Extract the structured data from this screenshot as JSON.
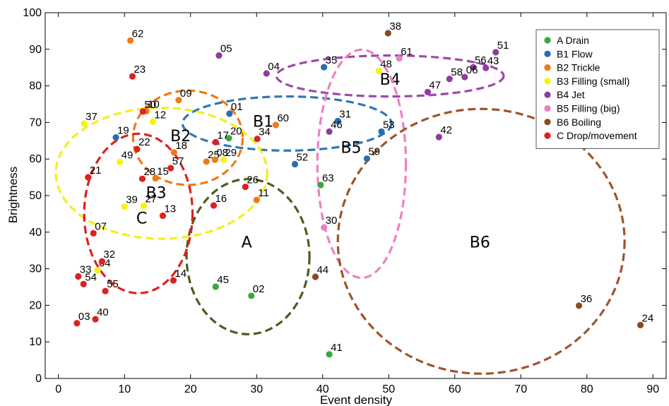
{
  "chart_data": {
    "type": "scatter",
    "xlabel": "Event density",
    "ylabel": "Brightness",
    "xlim": [
      -2,
      92
    ],
    "ylim": [
      0,
      100
    ],
    "xticks": [
      0,
      10,
      20,
      30,
      40,
      50,
      60,
      70,
      80,
      90
    ],
    "yticks": [
      0,
      10,
      20,
      30,
      40,
      50,
      60,
      70,
      80,
      90,
      100
    ],
    "grid": false,
    "legend_position": "top-right",
    "series": [
      {
        "name": "A  Drain",
        "color": "#3aa83a",
        "points": [
          {
            "id": "63",
            "x": 39.7,
            "y": 52.9
          },
          {
            "id": "45",
            "x": 23.8,
            "y": 25.1
          },
          {
            "id": "02",
            "x": 29.2,
            "y": 22.6
          },
          {
            "id": "41",
            "x": 41.0,
            "y": 6.6
          },
          {
            "id": "20",
            "x": 25.8,
            "y": 65.7
          }
        ]
      },
      {
        "name": "B1 Flow",
        "color": "#2b6cb0",
        "points": [
          {
            "id": "35",
            "x": 40.2,
            "y": 85.1
          },
          {
            "id": "01",
            "x": 25.9,
            "y": 72.4
          },
          {
            "id": "31",
            "x": 42.3,
            "y": 70.4
          },
          {
            "id": "53",
            "x": 48.9,
            "y": 67.5
          },
          {
            "id": "19",
            "x": 8.7,
            "y": 65.9
          },
          {
            "id": "52",
            "x": 35.8,
            "y": 58.6
          },
          {
            "id": "59",
            "x": 46.7,
            "y": 60.1
          }
        ]
      },
      {
        "name": "B2 Trickle",
        "color": "#f07a16",
        "points": [
          {
            "id": "62",
            "x": 10.9,
            "y": 92.4
          },
          {
            "id": "09",
            "x": 18.2,
            "y": 76.1
          },
          {
            "id": "10",
            "x": 13.3,
            "y": 73.1
          },
          {
            "id": "60",
            "x": 32.9,
            "y": 69.3
          },
          {
            "id": "18",
            "x": 17.5,
            "y": 61.8
          },
          {
            "id": "25",
            "x": 22.4,
            "y": 59.3
          },
          {
            "id": "08",
            "x": 23.7,
            "y": 59.8
          },
          {
            "id": "15",
            "x": 14.7,
            "y": 54.7
          },
          {
            "id": "11",
            "x": 30.0,
            "y": 48.8
          }
        ]
      },
      {
        "name": "B3 Filling (small)",
        "color": "#f5f50a",
        "points": [
          {
            "id": "37",
            "x": 3.9,
            "y": 69.7
          },
          {
            "id": "12",
            "x": 14.3,
            "y": 70.2
          },
          {
            "id": "49",
            "x": 9.3,
            "y": 59.2
          },
          {
            "id": "39",
            "x": 10.0,
            "y": 47.0
          },
          {
            "id": "27",
            "x": 12.9,
            "y": 47.2
          },
          {
            "id": "64",
            "x": 5.9,
            "y": 29.6
          },
          {
            "id": "29",
            "x": 25.0,
            "y": 59.8
          },
          {
            "id": "48",
            "x": 48.5,
            "y": 84.1
          }
        ]
      },
      {
        "name": "B4 Jet",
        "color": "#8e3d9e",
        "points": [
          {
            "id": "05",
            "x": 24.3,
            "y": 88.3
          },
          {
            "id": "04",
            "x": 31.5,
            "y": 83.4
          },
          {
            "id": "51",
            "x": 66.2,
            "y": 89.2
          },
          {
            "id": "56",
            "x": 62.8,
            "y": 85.1
          },
          {
            "id": "43",
            "x": 64.7,
            "y": 84.9
          },
          {
            "id": "06",
            "x": 61.5,
            "y": 82.4
          },
          {
            "id": "58",
            "x": 59.2,
            "y": 81.9
          },
          {
            "id": "47",
            "x": 55.9,
            "y": 78.3
          },
          {
            "id": "46",
            "x": 41.0,
            "y": 67.5
          },
          {
            "id": "42",
            "x": 57.6,
            "y": 66.0
          }
        ]
      },
      {
        "name": "B5 Filling (big)",
        "color": "#ee7fc3",
        "points": [
          {
            "id": "61",
            "x": 51.6,
            "y": 87.5
          },
          {
            "id": "30",
            "x": 40.2,
            "y": 41.3
          }
        ]
      },
      {
        "name": "B6 Boiling",
        "color": "#8b4a1e",
        "points": [
          {
            "id": "38",
            "x": 49.9,
            "y": 94.4
          },
          {
            "id": "44",
            "x": 38.9,
            "y": 27.8
          },
          {
            "id": "36",
            "x": 78.8,
            "y": 19.9
          },
          {
            "id": "24",
            "x": 88.1,
            "y": 14.6
          }
        ]
      },
      {
        "name": "C  Drop/movement",
        "color": "#dd2020",
        "points": [
          {
            "id": "23",
            "x": 11.2,
            "y": 82.6
          },
          {
            "id": "50",
            "x": 12.8,
            "y": 73.0
          },
          {
            "id": "22",
            "x": 11.9,
            "y": 62.7
          },
          {
            "id": "17",
            "x": 23.8,
            "y": 64.6
          },
          {
            "id": "34",
            "x": 30.1,
            "y": 65.5
          },
          {
            "id": "57",
            "x": 17.0,
            "y": 57.5
          },
          {
            "id": "21",
            "x": 4.5,
            "y": 55.0
          },
          {
            "id": "28",
            "x": 12.7,
            "y": 54.6
          },
          {
            "id": "26",
            "x": 28.3,
            "y": 52.4
          },
          {
            "id": "16",
            "x": 23.5,
            "y": 47.3
          },
          {
            "id": "13",
            "x": 15.8,
            "y": 44.5
          },
          {
            "id": "07",
            "x": 5.3,
            "y": 39.7
          },
          {
            "id": "32",
            "x": 6.6,
            "y": 32.0
          },
          {
            "id": "33",
            "x": 3.0,
            "y": 27.9
          },
          {
            "id": "54",
            "x": 3.8,
            "y": 25.8
          },
          {
            "id": "55",
            "x": 7.1,
            "y": 23.9
          },
          {
            "id": "14",
            "x": 17.4,
            "y": 26.8
          },
          {
            "id": "03",
            "x": 2.8,
            "y": 15.1
          },
          {
            "id": "40",
            "x": 5.6,
            "y": 16.2
          }
        ]
      }
    ],
    "clusters": [
      {
        "label": "A",
        "color": "#4a5e1e",
        "cx": 28.7,
        "cy": 33.3,
        "rx": 9.3,
        "ry": 21.2,
        "label_x": 28.5,
        "label_y": 37
      },
      {
        "label": "B1",
        "color": "#2f76b3",
        "cx": 34.6,
        "cy": 69.7,
        "rx": 15.8,
        "ry": 7.4,
        "label_x": 31.0,
        "label_y": 70
      },
      {
        "label": "B2",
        "color": "#ef7a12",
        "cx": 19.6,
        "cy": 65.8,
        "rx": 8.3,
        "ry": 12.9,
        "label_x": 18.5,
        "label_y": 66
      },
      {
        "label": "B3",
        "color": "#f3ef1a",
        "cx": 15.6,
        "cy": 56.1,
        "rx": 16.0,
        "ry": 17.9,
        "label_x": 14.8,
        "label_y": 50.5
      },
      {
        "label": "B4",
        "color": "#9d49a8",
        "cx": 50.2,
        "cy": 82.7,
        "rx": 17.2,
        "ry": 5.6,
        "label_x": 50.2,
        "label_y": 81.5
      },
      {
        "label": "B5",
        "color": "#ee7fc3",
        "cx": 45.9,
        "cy": 58.7,
        "rx": 6.7,
        "ry": 31.2,
        "label_x": 44.3,
        "label_y": 62.8
      },
      {
        "label": "B6",
        "color": "#a0532a",
        "cx": 64.0,
        "cy": 37.5,
        "rx": 21.7,
        "ry": 36.2,
        "label_x": 63.8,
        "label_y": 37
      },
      {
        "label": "C",
        "color": "#dd2020",
        "cx": 12.1,
        "cy": 45.1,
        "rx": 8.2,
        "ry": 21.8,
        "label_x": 12.6,
        "label_y": 43.5
      }
    ]
  }
}
